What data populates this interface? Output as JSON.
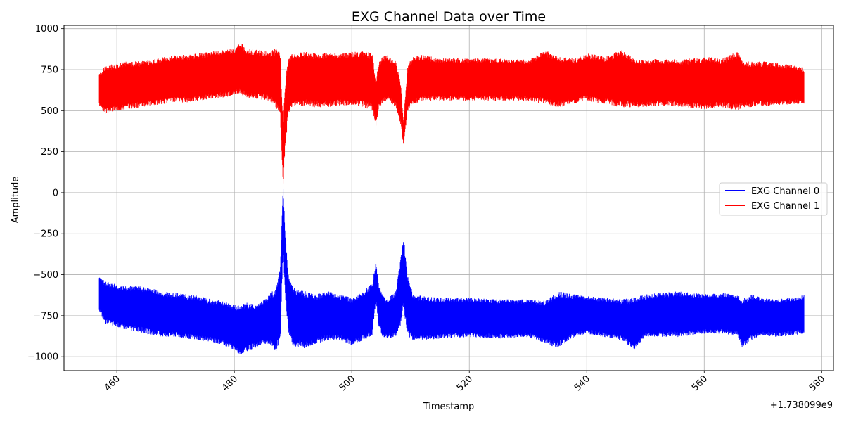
{
  "chart_data": {
    "type": "line",
    "title": "EXG Channel Data over Time",
    "xlabel": "Timestamp",
    "ylabel": "Amplitude",
    "x_offset_label": "+1.738099e9",
    "xlim": [
      451,
      582
    ],
    "ylim": [
      -1085,
      1020
    ],
    "x_ticks": [
      460,
      480,
      500,
      520,
      540,
      560,
      580
    ],
    "y_ticks": [
      -1000,
      -750,
      -500,
      -250,
      0,
      250,
      500,
      750,
      1000
    ],
    "x_tick_labels": [
      "460",
      "480",
      "500",
      "520",
      "540",
      "560",
      "580"
    ],
    "y_tick_labels": [
      "−1000",
      "−750",
      "−500",
      "−250",
      "0",
      "250",
      "500",
      "750",
      "1000"
    ],
    "grid": true,
    "legend_position": "center-right",
    "series": [
      {
        "name": "EXG Channel 0",
        "color": "#0000ff",
        "x": [
          457,
          458,
          460,
          462,
          464,
          466,
          468,
          470,
          472,
          474,
          476,
          478,
          480,
          481,
          482,
          484,
          486,
          487,
          487.8,
          488.3,
          488.6,
          489.2,
          490,
          492,
          494,
          496,
          498,
          500,
          502,
          503.5,
          504.1,
          504.6,
          505.2,
          506,
          507.5,
          508.4,
          508.8,
          509.5,
          510.5,
          512,
          515,
          520,
          525,
          530,
          533,
          535,
          538,
          540,
          543,
          546,
          548,
          550,
          553,
          556,
          560,
          563,
          565.7,
          566.5,
          568,
          570,
          572,
          575,
          577
        ],
        "max": [
          -510,
          -540,
          -560,
          -570,
          -570,
          -580,
          -600,
          -610,
          -620,
          -630,
          -650,
          -660,
          -680,
          -690,
          -670,
          -680,
          -620,
          -580,
          -450,
          50,
          -200,
          -500,
          -580,
          -600,
          -620,
          -600,
          -620,
          -640,
          -600,
          -550,
          -420,
          -560,
          -620,
          -650,
          -600,
          -380,
          -260,
          -500,
          -620,
          -630,
          -640,
          -640,
          -650,
          -650,
          -660,
          -600,
          -620,
          -630,
          -640,
          -650,
          -640,
          -620,
          -610,
          -600,
          -620,
          -610,
          -620,
          -650,
          -620,
          -640,
          -650,
          -640,
          -620
        ],
        "min": [
          -720,
          -800,
          -820,
          -840,
          -850,
          -870,
          -880,
          -880,
          -890,
          -900,
          -910,
          -930,
          -960,
          -990,
          -970,
          -940,
          -920,
          -980,
          -900,
          -350,
          -600,
          -850,
          -940,
          -950,
          -920,
          -900,
          -900,
          -930,
          -900,
          -870,
          -650,
          -830,
          -880,
          -890,
          -880,
          -800,
          -700,
          -880,
          -900,
          -900,
          -890,
          -880,
          -890,
          -880,
          -920,
          -950,
          -880,
          -860,
          -880,
          -900,
          -960,
          -880,
          -880,
          -880,
          -860,
          -860,
          -870,
          -950,
          -900,
          -870,
          -880,
          -870,
          -860
        ]
      },
      {
        "name": "EXG Channel 1",
        "color": "#ff0000",
        "x": [
          457,
          458,
          460,
          462,
          464,
          466,
          468,
          470,
          472,
          474,
          476,
          478,
          480,
          481,
          482,
          484,
          486,
          487,
          487.8,
          488.3,
          488.6,
          489.2,
          490,
          492,
          494,
          496,
          498,
          500,
          502,
          503.5,
          504.1,
          504.6,
          505.2,
          506,
          507.5,
          508.4,
          508.8,
          509.5,
          510.5,
          512,
          515,
          520,
          525,
          530,
          533,
          535,
          538,
          540,
          543,
          546,
          548,
          550,
          553,
          556,
          560,
          563,
          565.7,
          566.5,
          568,
          570,
          572,
          575,
          577
        ],
        "max": [
          730,
          770,
          790,
          800,
          800,
          810,
          830,
          840,
          840,
          850,
          860,
          870,
          880,
          920,
          880,
          870,
          860,
          880,
          860,
          400,
          650,
          830,
          850,
          860,
          850,
          860,
          850,
          860,
          870,
          850,
          680,
          800,
          830,
          840,
          800,
          650,
          430,
          780,
          830,
          840,
          820,
          820,
          820,
          810,
          870,
          830,
          820,
          850,
          830,
          870,
          820,
          810,
          820,
          810,
          830,
          820,
          860,
          800,
          800,
          800,
          790,
          780,
          760
        ],
        "min": [
          530,
          480,
          500,
          510,
          520,
          530,
          540,
          550,
          550,
          560,
          570,
          580,
          590,
          600,
          580,
          570,
          560,
          520,
          480,
          30,
          250,
          480,
          520,
          530,
          520,
          520,
          530,
          530,
          520,
          500,
          400,
          510,
          540,
          560,
          520,
          400,
          280,
          500,
          540,
          560,
          560,
          560,
          560,
          560,
          540,
          520,
          540,
          560,
          540,
          520,
          520,
          520,
          530,
          520,
          510,
          520,
          500,
          520,
          520,
          530,
          530,
          540,
          540
        ]
      }
    ]
  }
}
